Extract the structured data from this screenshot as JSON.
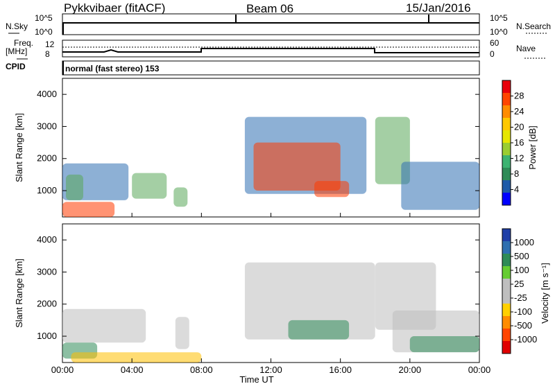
{
  "header": {
    "station": "Pykkvibaer (fitACF)",
    "beam": "Beam 06",
    "date": "15/Jan/2016"
  },
  "top_panels": {
    "nsky_label": "N.Sky",
    "nsearch_label": "N.Search",
    "nsky_ticks": [
      "10^5",
      "10^0"
    ],
    "nsearch_ticks": [
      "10^5",
      "10^0"
    ],
    "freq_label_1": "Freq.",
    "freq_label_2": "[MHz]",
    "freq_ticks": [
      "12",
      "8"
    ],
    "nave_label": "Nave",
    "nave_ticks": [
      "60",
      "0"
    ],
    "cpid_label": "CPID",
    "cpid_text": "normal (fast stereo) 153"
  },
  "colorbars": {
    "power": {
      "label": "Power [dB]",
      "ticks": [
        "28",
        "24",
        "20",
        "16",
        "12",
        "8",
        "4"
      ],
      "colors": [
        "#e8000b",
        "#ff4500",
        "#ff8c00",
        "#ffc800",
        "#e6e600",
        "#9acd32",
        "#3cb371",
        "#2e8b57",
        "#1e5aa8",
        "#0000ff"
      ]
    },
    "velocity": {
      "label": "Velocity [m s⁻¹]",
      "ticks": [
        "1000",
        "500",
        "100",
        "25",
        "-25",
        "-100",
        "-500",
        "-1000"
      ],
      "colors": [
        "#1f3fa8",
        "#2e6fb0",
        "#2e8b57",
        "#66cc33",
        "#bebebe",
        "#bebebe",
        "#ffd000",
        "#ff8c00",
        "#ff4500",
        "#e00000"
      ]
    }
  },
  "chart_data": [
    {
      "type": "heatmap",
      "name": "Power",
      "ylabel": "Slant Range [km]",
      "ylim": [
        180,
        4500
      ],
      "yticks": [
        "1000",
        "2000",
        "3000",
        "4000"
      ],
      "xlim_hours": [
        0,
        24
      ],
      "colorbar": "Power [dB]",
      "regions": [
        {
          "t0": 0.0,
          "t1": 3.8,
          "r0": 700,
          "r1": 1850,
          "level": "low"
        },
        {
          "t0": 0.2,
          "t1": 1.2,
          "r0": 700,
          "r1": 1500,
          "level": "mid"
        },
        {
          "t0": 0.0,
          "t1": 3.0,
          "r0": 180,
          "r1": 650,
          "level": "high"
        },
        {
          "t0": 4.0,
          "t1": 6.0,
          "r0": 750,
          "r1": 1550,
          "level": "mid"
        },
        {
          "t0": 6.4,
          "t1": 7.2,
          "r0": 500,
          "r1": 1100,
          "level": "mid"
        },
        {
          "t0": 10.5,
          "t1": 17.5,
          "r0": 900,
          "r1": 3300,
          "level": "low"
        },
        {
          "t0": 11.0,
          "t1": 16.0,
          "r0": 1000,
          "r1": 2500,
          "level": "high"
        },
        {
          "t0": 14.5,
          "t1": 16.5,
          "r0": 800,
          "r1": 1300,
          "level": "high"
        },
        {
          "t0": 18.0,
          "t1": 20.0,
          "r0": 1200,
          "r1": 3300,
          "level": "mid"
        },
        {
          "t0": 19.5,
          "t1": 24.0,
          "r0": 400,
          "r1": 1900,
          "level": "low"
        }
      ]
    },
    {
      "type": "heatmap",
      "name": "Velocity",
      "ylabel": "Slant Range [km]",
      "xlabel": "Time UT",
      "ylim": [
        180,
        4500
      ],
      "yticks": [
        "1000",
        "2000",
        "3000",
        "4000"
      ],
      "xlim_hours": [
        0,
        24
      ],
      "xticks": [
        "00:00",
        "04:00",
        "08:00",
        "12:00",
        "16:00",
        "20:00",
        "00:00"
      ],
      "colorbar": "Velocity [m s⁻¹]",
      "regions": [
        {
          "t0": 0.0,
          "t1": 4.8,
          "r0": 800,
          "r1": 1850,
          "level": "zero"
        },
        {
          "t0": 0.0,
          "t1": 2.0,
          "r0": 300,
          "r1": 800,
          "level": "positive"
        },
        {
          "t0": 0.5,
          "t1": 8.0,
          "r0": 180,
          "r1": 500,
          "level": "negative"
        },
        {
          "t0": 6.5,
          "t1": 7.3,
          "r0": 600,
          "r1": 1600,
          "level": "zero"
        },
        {
          "t0": 10.5,
          "t1": 18.0,
          "r0": 900,
          "r1": 3300,
          "level": "zero"
        },
        {
          "t0": 13.0,
          "t1": 16.5,
          "r0": 900,
          "r1": 1500,
          "level": "positive"
        },
        {
          "t0": 18.0,
          "t1": 21.5,
          "r0": 1200,
          "r1": 3300,
          "level": "zero"
        },
        {
          "t0": 19.0,
          "t1": 24.0,
          "r0": 500,
          "r1": 1800,
          "level": "zero"
        },
        {
          "t0": 20.0,
          "t1": 24.0,
          "r0": 500,
          "r1": 1000,
          "level": "positive"
        }
      ]
    }
  ]
}
